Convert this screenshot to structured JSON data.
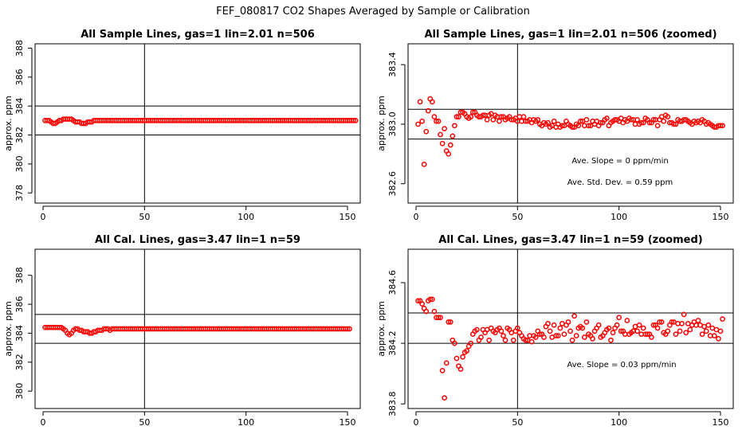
{
  "figure": {
    "title": "FEF_080817  CO2 Shapes Averaged by Sample or Calibration"
  },
  "colors": {
    "points": "#ff0000",
    "lines": "#000000",
    "background": "#ffffff"
  },
  "chart_data": [
    {
      "type": "scatter",
      "title": "All Sample Lines, gas=1 lin=2.01 n=506",
      "ylabel": "approx. ppm",
      "xlim": [
        0,
        150
      ],
      "ylim": [
        377.3,
        388.3
      ],
      "x_ticks": [
        0,
        50,
        100,
        150
      ],
      "y_ticks": [
        378,
        380,
        382,
        384,
        386,
        388
      ],
      "y_tick_labels": [
        "378",
        "380",
        "382",
        "384",
        "386",
        "388"
      ],
      "hlines": [
        384,
        382
      ],
      "vline": 50,
      "annotations": [],
      "series": [
        {
          "values": [
            383.0,
            383.0,
            383.0,
            382.9,
            382.8,
            382.8,
            382.9,
            383.0,
            383.0,
            383.1,
            383.1,
            383.1,
            383.1,
            383.1,
            383.0,
            382.9,
            382.9,
            382.9,
            382.8,
            382.8,
            382.8,
            382.9,
            382.9,
            382.9,
            383.0,
            383.0,
            383.0,
            383.0,
            383.0,
            383.0,
            383.0,
            383.0,
            383.0,
            383.0,
            383.0,
            383.0,
            383.0,
            383.0,
            383.0,
            383.0,
            383.0,
            383.0,
            383.0,
            383.0,
            383.0,
            383.0,
            383.0,
            383.0,
            383.0,
            383.0,
            383.0,
            383.0,
            383.0,
            383.0,
            383.0,
            383.0,
            383.0,
            383.0,
            383.0,
            383.0,
            383.0,
            383.0,
            383.0,
            383.0,
            383.0,
            383.0,
            383.0,
            383.0,
            383.0,
            383.0,
            383.0,
            383.0,
            383.0,
            383.0,
            383.0,
            383.0,
            383.0,
            383.0,
            383.0,
            383.0,
            383.0,
            383.0,
            383.0,
            383.0,
            383.0,
            383.0,
            383.0,
            383.0,
            383.0,
            383.0,
            383.0,
            383.0,
            383.0,
            383.0,
            383.0,
            383.0,
            383.0,
            383.0,
            383.0,
            383.0,
            383.0,
            383.0,
            383.0,
            383.0,
            383.0,
            383.0,
            383.0,
            383.0,
            383.0,
            383.0,
            383.0,
            383.0,
            383.0,
            383.0,
            383.0,
            383.0,
            383.0,
            383.0,
            383.0,
            383.0,
            383.0,
            383.0,
            383.0,
            383.0,
            383.0,
            383.0,
            383.0,
            383.0,
            383.0,
            383.0,
            383.0,
            383.0,
            383.0,
            383.0,
            383.0,
            383.0,
            383.0,
            383.0,
            383.0,
            383.0,
            383.0,
            383.0,
            383.0,
            383.0,
            383.0,
            383.0,
            383.0,
            383.0,
            383.0,
            383.0,
            383.0,
            383.0,
            383.0,
            383.0
          ]
        }
      ]
    },
    {
      "type": "scatter",
      "title": "All Sample Lines, gas=1 lin=2.01 n=506 (zoomed)",
      "ylabel": "approx. ppm",
      "xlim": [
        0,
        150
      ],
      "ylim": [
        382.47,
        383.54
      ],
      "x_ticks": [
        0,
        50,
        100,
        150
      ],
      "y_ticks": [
        382.6,
        383.0,
        383.4
      ],
      "y_tick_labels": [
        "382.6",
        "383.0",
        "383.4"
      ],
      "hlines": [
        383.1,
        382.9
      ],
      "vline": 50,
      "annotations": [
        "Ave. Slope =  0  ppm/min",
        "Ave. Std. Dev. =  0.59  ppm"
      ],
      "series": [
        {
          "values": [
            383.0,
            383.15,
            383.02,
            382.73,
            382.95,
            383.09,
            383.17,
            383.15,
            383.05,
            383.02,
            383.02,
            382.93,
            382.87,
            382.97,
            382.82,
            382.8,
            382.86,
            382.92,
            382.99,
            383.05,
            383.05,
            383.08,
            383.08,
            383.07,
            383.05,
            383.04,
            383.05,
            383.08,
            383.08,
            383.06,
            383.05,
            383.05,
            383.06,
            383.06,
            383.03,
            383.06,
            383.07,
            383.03,
            383.06,
            383.05,
            383.02,
            383.05,
            383.05,
            383.03,
            383.04,
            383.05,
            383.03,
            383.03,
            383.04,
            383.02,
            383.05,
            383.02,
            383.05,
            383.02,
            383.02,
            383.03,
            383.01,
            383.03,
            383.02,
            383.03,
            383.0,
            382.99,
            383.01,
            383.0,
            383.01,
            382.98,
            382.99,
            383.02,
            382.98,
            383.0,
            382.98,
            382.99,
            382.99,
            383.02,
            383.0,
            382.99,
            382.98,
            382.98,
            383.0,
            382.99,
            383.02,
            383.02,
            382.99,
            383.03,
            382.99,
            382.99,
            383.02,
            383.0,
            383.02,
            382.99,
            383.01,
            383.01,
            383.03,
            383.04,
            382.99,
            383.01,
            383.02,
            383.03,
            383.03,
            383.02,
            383.04,
            383.01,
            383.03,
            383.02,
            383.04,
            383.03,
            383.03,
            383.0,
            383.03,
            383.0,
            383.01,
            383.01,
            383.04,
            383.03,
            383.01,
            383.01,
            383.03,
            383.03,
            382.99,
            383.03,
            383.05,
            383.02,
            383.06,
            383.05,
            383.01,
            383.01,
            383.0,
            383.0,
            383.03,
            383.02,
            383.02,
            383.03,
            383.03,
            383.02,
            383.01,
            383.0,
            383.02,
            383.01,
            383.02,
            383.01,
            383.03,
            383.02,
            383.0,
            383.01,
            383.0,
            382.99,
            382.98,
            382.98,
            382.99,
            382.99,
            382.99
          ]
        }
      ]
    },
    {
      "type": "scatter",
      "title": "All Cal. Lines, gas=3.47 lin=1 n=59",
      "ylabel": "approx. ppm",
      "xlim": [
        0,
        150
      ],
      "ylim": [
        378.8,
        389.8
      ],
      "x_ticks": [
        0,
        50,
        100,
        150
      ],
      "y_ticks": [
        380,
        382,
        384,
        386,
        388
      ],
      "y_tick_labels": [
        "380",
        "382",
        "384",
        "386",
        "388"
      ],
      "hlines": [
        385.3,
        383.3
      ],
      "vline": 50,
      "annotations": [],
      "series": [
        {
          "values": [
            384.4,
            384.4,
            384.4,
            384.4,
            384.4,
            384.4,
            384.4,
            384.4,
            384.4,
            384.3,
            384.2,
            384.0,
            383.9,
            384.0,
            384.2,
            384.3,
            384.3,
            384.2,
            384.2,
            384.1,
            384.1,
            384.1,
            384.0,
            384.0,
            384.1,
            384.1,
            384.2,
            384.2,
            384.2,
            384.3,
            384.3,
            384.3,
            384.2,
            384.3,
            384.3,
            384.3,
            384.3,
            384.3,
            384.3,
            384.3,
            384.3,
            384.3,
            384.3,
            384.3,
            384.3,
            384.3,
            384.3,
            384.3,
            384.3,
            384.3,
            384.3,
            384.3,
            384.3,
            384.3,
            384.3,
            384.3,
            384.3,
            384.3,
            384.3,
            384.3,
            384.3,
            384.3,
            384.3,
            384.3,
            384.3,
            384.3,
            384.3,
            384.3,
            384.3,
            384.3,
            384.3,
            384.3,
            384.3,
            384.3,
            384.3,
            384.3,
            384.3,
            384.3,
            384.3,
            384.3,
            384.3,
            384.3,
            384.3,
            384.3,
            384.3,
            384.3,
            384.3,
            384.3,
            384.3,
            384.3,
            384.3,
            384.3,
            384.3,
            384.3,
            384.3,
            384.3,
            384.3,
            384.3,
            384.3,
            384.3,
            384.3,
            384.3,
            384.3,
            384.3,
            384.3,
            384.3,
            384.3,
            384.3,
            384.3,
            384.3,
            384.3,
            384.3,
            384.3,
            384.3,
            384.3,
            384.3,
            384.3,
            384.3,
            384.3,
            384.3,
            384.3,
            384.3,
            384.3,
            384.3,
            384.3,
            384.3,
            384.3,
            384.3,
            384.3,
            384.3,
            384.3,
            384.3,
            384.3,
            384.3,
            384.3,
            384.3,
            384.3,
            384.3,
            384.3,
            384.3,
            384.3,
            384.3,
            384.3,
            384.3,
            384.3,
            384.3,
            384.3,
            384.3,
            384.3,
            384.3,
            384.3
          ]
        }
      ]
    },
    {
      "type": "scatter",
      "title": "All Cal. Lines, gas=3.47 lin=1 n=59 (zoomed)",
      "ylabel": "approx. ppm",
      "xlim": [
        0,
        150
      ],
      "ylim": [
        383.77,
        384.82
      ],
      "x_ticks": [
        0,
        50,
        100,
        150
      ],
      "y_ticks": [
        383.8,
        384.2,
        384.6
      ],
      "y_tick_labels": [
        "383.8",
        "384.2",
        "384.6"
      ],
      "hlines": [
        384.4,
        384.2
      ],
      "vline": 50,
      "annotations": [
        "Ave. Slope =  0.03  ppm/min"
      ],
      "series": [
        {
          "values": [
            384.48,
            384.48,
            384.46,
            384.43,
            384.41,
            384.48,
            384.49,
            384.49,
            384.41,
            384.37,
            384.37,
            384.37,
            384.02,
            383.84,
            384.07,
            384.34,
            384.34,
            384.22,
            384.2,
            384.1,
            384.05,
            384.03,
            384.11,
            384.14,
            384.15,
            384.18,
            384.2,
            384.26,
            384.28,
            384.29,
            384.22,
            384.24,
            384.29,
            384.27,
            384.29,
            384.22,
            384.3,
            384.28,
            384.27,
            384.29,
            384.3,
            384.28,
            384.25,
            384.22,
            384.3,
            384.29,
            384.27,
            384.22,
            384.28,
            384.3,
            384.27,
            384.25,
            384.23,
            384.22,
            384.22,
            384.25,
            384.21,
            384.25,
            384.24,
            384.28,
            384.26,
            384.26,
            384.24,
            384.31,
            384.33,
            384.28,
            384.24,
            384.32,
            384.25,
            384.25,
            384.3,
            384.33,
            384.26,
            384.32,
            384.34,
            384.28,
            384.22,
            384.38,
            384.25,
            384.3,
            384.31,
            384.3,
            384.24,
            384.34,
            384.26,
            384.25,
            384.23,
            384.28,
            384.3,
            384.32,
            384.24,
            384.25,
            384.27,
            384.29,
            384.3,
            384.22,
            384.27,
            384.3,
            384.32,
            384.37,
            384.28,
            384.28,
            384.26,
            384.35,
            384.26,
            384.27,
            384.28,
            384.31,
            384.28,
            384.32,
            384.26,
            384.3,
            384.26,
            384.26,
            384.26,
            384.24,
            384.32,
            384.32,
            384.3,
            384.34,
            384.34,
            384.27,
            384.26,
            384.28,
            384.32,
            384.34,
            384.34,
            384.26,
            384.33,
            384.28,
            384.33,
            384.39,
            384.27,
            384.33,
            384.29,
            384.32,
            384.34,
            384.32,
            384.35,
            384.32,
            384.26,
            384.31,
            384.28,
            384.32,
            384.25,
            384.3,
            384.25,
            384.29,
            384.23,
            384.28,
            384.36
          ]
        }
      ]
    }
  ]
}
